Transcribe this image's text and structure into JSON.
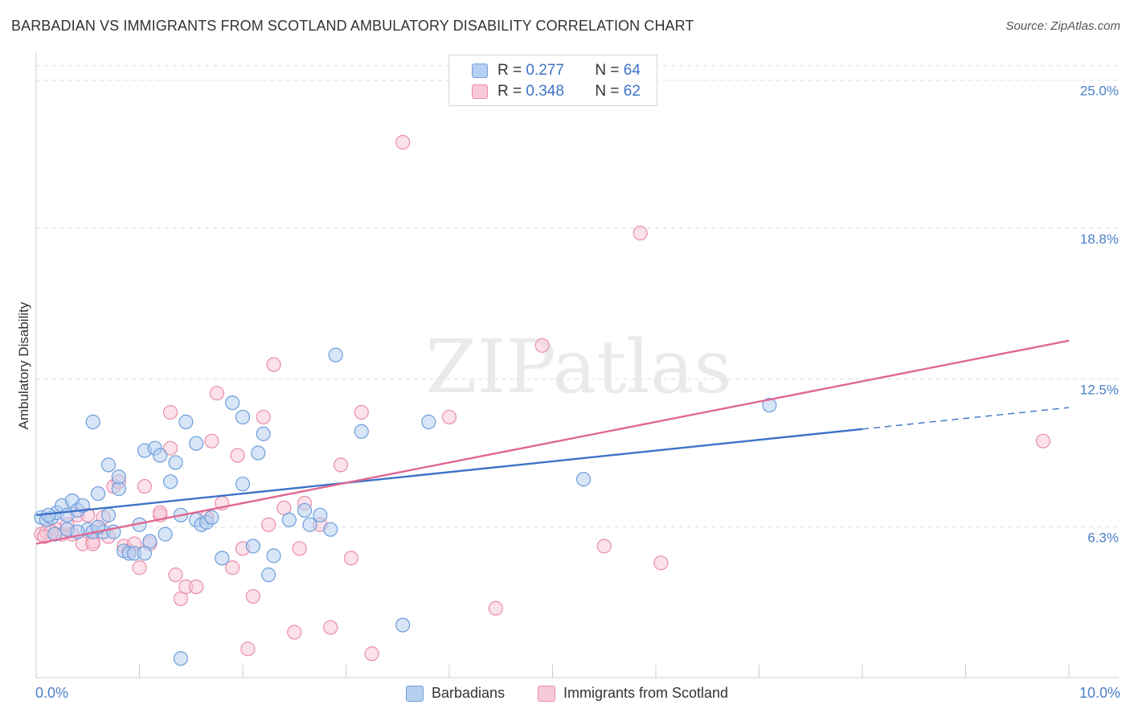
{
  "header": {
    "title": "BARBADIAN VS IMMIGRANTS FROM SCOTLAND AMBULATORY DISABILITY CORRELATION CHART",
    "source": "Source: ZipAtlas.com"
  },
  "watermark": "ZIPatlas",
  "legend": {
    "blue": {
      "r_label": "R =",
      "r_value": "0.277",
      "n_label": "N =",
      "n_value": "64"
    },
    "pink": {
      "r_label": "R =",
      "r_value": "0.348",
      "n_label": "N =",
      "n_value": "62"
    }
  },
  "bottom_legend": {
    "blue_label": "Barbadians",
    "pink_label": "Immigrants from Scotland"
  },
  "chart_data": {
    "type": "scatter",
    "title": "BARBADIAN VS IMMIGRANTS FROM SCOTLAND AMBULATORY DISABILITY CORRELATION CHART",
    "xlabel": "",
    "ylabel": "Ambulatory Disability",
    "xlim": [
      0,
      10
    ],
    "ylim": [
      0,
      26
    ],
    "x_tick_labels": [
      "0.0%",
      "10.0%"
    ],
    "y_ticks": [
      6.3,
      12.5,
      18.8,
      25.0
    ],
    "y_tick_labels": [
      "6.3%",
      "12.5%",
      "18.8%",
      "25.0%"
    ],
    "grid": "horizontal dashed",
    "legend_position": "top-center",
    "colors": {
      "blue": "#3d73c6",
      "pink": "#e06892",
      "blue_fill": "#b6cff0",
      "pink_fill": "#f7c9d7",
      "tick_text": "#4a7fc8"
    },
    "series": [
      {
        "name": "Barbadians",
        "color": "blue",
        "trend": {
          "x0": 0.0,
          "y0": 6.8,
          "x1": 8.0,
          "y1": 10.4,
          "dashed_to_x": 10.0,
          "dashed_to_y": 11.3
        },
        "points": [
          [
            0.05,
            6.7
          ],
          [
            0.1,
            6.6
          ],
          [
            0.15,
            6.7
          ],
          [
            0.2,
            6.9
          ],
          [
            0.25,
            7.2
          ],
          [
            0.3,
            6.8
          ],
          [
            0.35,
            7.4
          ],
          [
            0.4,
            7.0
          ],
          [
            0.45,
            7.2
          ],
          [
            0.5,
            6.2
          ],
          [
            0.55,
            6.1
          ],
          [
            0.6,
            7.7
          ],
          [
            0.65,
            6.1
          ],
          [
            0.7,
            8.9
          ],
          [
            0.7,
            6.8
          ],
          [
            0.8,
            7.9
          ],
          [
            0.8,
            8.4
          ],
          [
            0.85,
            5.3
          ],
          [
            0.9,
            5.2
          ],
          [
            0.95,
            5.2
          ],
          [
            1.0,
            6.4
          ],
          [
            1.05,
            9.5
          ],
          [
            1.1,
            5.7
          ],
          [
            1.15,
            9.6
          ],
          [
            1.2,
            9.3
          ],
          [
            1.25,
            6.0
          ],
          [
            1.3,
            8.2
          ],
          [
            1.35,
            9.0
          ],
          [
            1.4,
            6.8
          ],
          [
            1.45,
            10.7
          ],
          [
            1.55,
            9.8
          ],
          [
            1.55,
            6.6
          ],
          [
            1.6,
            6.4
          ],
          [
            1.65,
            6.5
          ],
          [
            1.7,
            6.7
          ],
          [
            1.8,
            5.0
          ],
          [
            1.9,
            11.5
          ],
          [
            2.0,
            8.1
          ],
          [
            2.0,
            10.9
          ],
          [
            2.1,
            5.5
          ],
          [
            2.15,
            9.4
          ],
          [
            2.2,
            10.2
          ],
          [
            2.25,
            4.3
          ],
          [
            2.3,
            5.1
          ],
          [
            2.6,
            7.0
          ],
          [
            2.65,
            6.4
          ],
          [
            2.75,
            6.8
          ],
          [
            2.85,
            6.2
          ],
          [
            2.9,
            13.5
          ],
          [
            3.15,
            10.3
          ],
          [
            3.55,
            2.2
          ],
          [
            3.8,
            10.7
          ],
          [
            5.3,
            8.3
          ],
          [
            7.1,
            11.4
          ],
          [
            0.55,
            10.7
          ],
          [
            1.05,
            5.2
          ],
          [
            0.75,
            6.1
          ],
          [
            0.3,
            6.2
          ],
          [
            0.18,
            6.0
          ],
          [
            0.12,
            6.8
          ],
          [
            0.4,
            6.1
          ],
          [
            1.4,
            0.8
          ],
          [
            2.45,
            6.6
          ],
          [
            0.6,
            6.3
          ]
        ]
      },
      {
        "name": "Immigrants from Scotland",
        "color": "pink",
        "trend": {
          "x0": 0.0,
          "y0": 5.6,
          "x1": 10.0,
          "y1": 14.1
        },
        "points": [
          [
            0.05,
            6.0
          ],
          [
            0.1,
            6.1
          ],
          [
            0.2,
            6.2
          ],
          [
            0.25,
            6.0
          ],
          [
            0.3,
            6.4
          ],
          [
            0.35,
            6.0
          ],
          [
            0.4,
            6.8
          ],
          [
            0.45,
            5.6
          ],
          [
            0.5,
            6.8
          ],
          [
            0.55,
            5.7
          ],
          [
            0.6,
            6.3
          ],
          [
            0.65,
            6.7
          ],
          [
            0.7,
            5.9
          ],
          [
            0.75,
            8.0
          ],
          [
            0.8,
            8.2
          ],
          [
            0.85,
            5.5
          ],
          [
            0.9,
            5.3
          ],
          [
            0.95,
            5.6
          ],
          [
            1.0,
            4.6
          ],
          [
            1.05,
            8.0
          ],
          [
            1.1,
            5.6
          ],
          [
            1.2,
            6.8
          ],
          [
            1.3,
            9.6
          ],
          [
            1.3,
            11.1
          ],
          [
            1.35,
            4.3
          ],
          [
            1.4,
            3.3
          ],
          [
            1.45,
            3.8
          ],
          [
            1.55,
            3.8
          ],
          [
            1.65,
            6.7
          ],
          [
            1.7,
            9.9
          ],
          [
            1.75,
            11.9
          ],
          [
            1.8,
            7.3
          ],
          [
            1.9,
            4.6
          ],
          [
            1.95,
            9.3
          ],
          [
            2.0,
            5.4
          ],
          [
            2.05,
            1.2
          ],
          [
            2.1,
            3.4
          ],
          [
            2.2,
            10.9
          ],
          [
            2.25,
            6.4
          ],
          [
            2.3,
            13.1
          ],
          [
            2.4,
            7.1
          ],
          [
            2.5,
            1.9
          ],
          [
            2.55,
            5.4
          ],
          [
            2.6,
            7.3
          ],
          [
            2.75,
            6.4
          ],
          [
            2.85,
            2.1
          ],
          [
            2.95,
            8.9
          ],
          [
            3.05,
            5.0
          ],
          [
            3.15,
            11.1
          ],
          [
            3.25,
            1.0
          ],
          [
            3.55,
            22.4
          ],
          [
            4.0,
            10.9
          ],
          [
            4.45,
            2.9
          ],
          [
            4.9,
            13.9
          ],
          [
            5.5,
            5.5
          ],
          [
            5.85,
            18.6
          ],
          [
            6.05,
            4.8
          ],
          [
            9.75,
            9.9
          ],
          [
            0.15,
            6.1
          ],
          [
            0.55,
            5.6
          ],
          [
            0.08,
            5.9
          ],
          [
            1.2,
            6.9
          ]
        ]
      }
    ]
  }
}
